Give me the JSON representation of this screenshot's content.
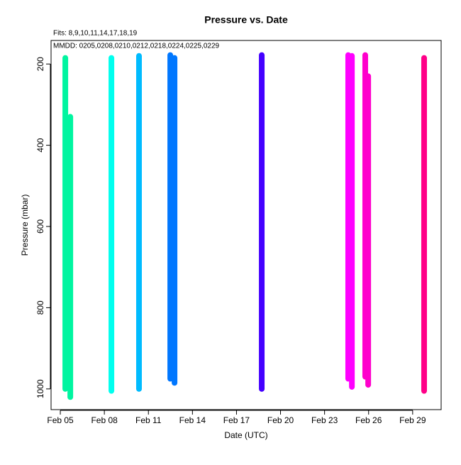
{
  "chart_data": {
    "type": "line",
    "title": "Pressure  vs. Date",
    "annotations": [
      "Fits: 8,9,10,11,14,17,18,19",
      "MMDD: 0205,0208,0210,0212,0218,0224,0225,0229"
    ],
    "x_label": "Date (UTC)",
    "y_label": "Pressure (mbar)",
    "xlim": [
      4.37,
      30.94
    ],
    "xticks": [
      {
        "value": 5,
        "label": "Feb 05"
      },
      {
        "value": 8,
        "label": "Feb 08"
      },
      {
        "value": 11,
        "label": "Feb 11"
      },
      {
        "value": 14,
        "label": "Feb 14"
      },
      {
        "value": 17,
        "label": "Feb 17"
      },
      {
        "value": 20,
        "label": "Feb 20"
      },
      {
        "value": 23,
        "label": "Feb 23"
      },
      {
        "value": 26,
        "label": "Feb 26"
      },
      {
        "value": 29,
        "label": "Feb 29"
      }
    ],
    "ylim": [
      1051,
      142
    ],
    "yticks": [
      200,
      400,
      600,
      800,
      1000
    ],
    "series": [
      {
        "color": "#00f5a0",
        "x": [
          5.34,
          5.34,
          null,
          5.68,
          5.68
        ],
        "values": [
          1000,
          185,
          null,
          330,
          1020
        ]
      },
      {
        "color": "#00ffee",
        "x": [
          8.48,
          8.48
        ],
        "values": [
          1005,
          185
        ]
      },
      {
        "color": "#00bbff",
        "x": [
          10.36,
          10.36
        ],
        "values": [
          1000,
          180
        ]
      },
      {
        "color": "#0077ff",
        "x": [
          12.49,
          12.49,
          null,
          12.78,
          12.78
        ],
        "values": [
          975,
          178,
          null,
          185,
          985
        ]
      },
      {
        "color": "#4400ff",
        "x": [
          18.72,
          18.72
        ],
        "values": [
          1000,
          178
        ]
      },
      {
        "color": "#ff00ff",
        "x": [
          24.61,
          24.61,
          null,
          24.86,
          24.86
        ],
        "values": [
          975,
          178,
          null,
          180,
          995
        ]
      },
      {
        "color": "#ff00cc",
        "x": [
          25.77,
          25.77,
          null,
          25.97,
          25.97
        ],
        "values": [
          970,
          178,
          null,
          230,
          990
        ]
      },
      {
        "color": "#ff0088",
        "x": [
          29.78,
          29.78
        ],
        "values": [
          1005,
          185
        ]
      }
    ]
  }
}
